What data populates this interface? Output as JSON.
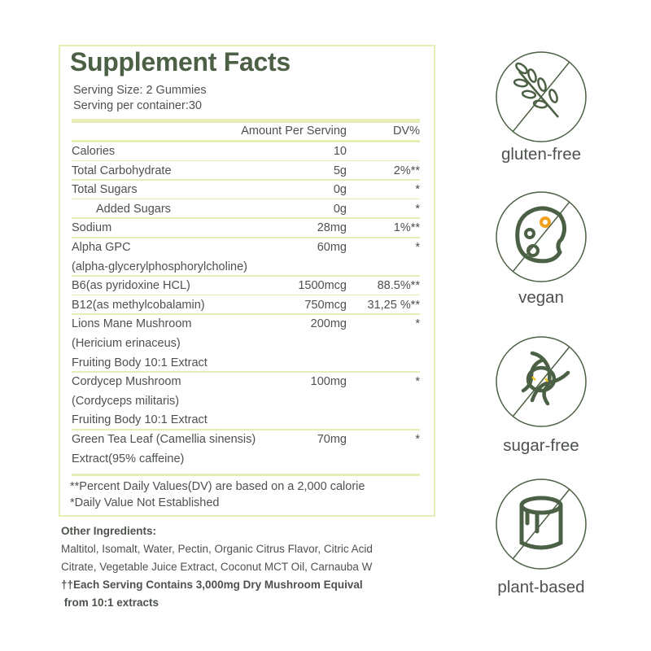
{
  "panel": {
    "title": "Supplement Facts",
    "serving_size": "Serving Size: 2 Gummies",
    "servings_per_container": "Serving per container:30",
    "header": {
      "amount": "Amount Per Serving",
      "dv": "DV%"
    },
    "rows": [
      {
        "label": "Calories",
        "amount": "10",
        "dv": ""
      },
      {
        "label": "Total Carbohydrate",
        "amount": "5g",
        "dv": "2%**"
      },
      {
        "label": "Total Sugars",
        "amount": "0g",
        "dv": "*"
      },
      {
        "label": "Added Sugars",
        "amount": "0g",
        "dv": "*"
      },
      {
        "label": "Sodium",
        "amount": "28mg",
        "dv": "1%**"
      },
      {
        "label": "Alpha GPC",
        "sub": [
          "(alpha-glycerylphosphorylcholine)"
        ],
        "amount": "60mg",
        "dv": "*"
      },
      {
        "label": "B6(as pyridoxine HCL)",
        "amount": "1500mcg",
        "dv": "88.5%**"
      },
      {
        "label": "B12(as methylcobalamin)",
        "amount": "750mcg",
        "dv": "31,25 %**"
      },
      {
        "label": "Lions Mane Mushroom",
        "sub": [
          "(Hericium erinaceus)",
          "Fruiting Body 10:1 Extract"
        ],
        "amount": "200mg",
        "dv": "*"
      },
      {
        "label": "Cordycep Mushroom",
        "sub": [
          "(Cordyceps militaris)",
          "Fruiting Body 10:1 Extract"
        ],
        "amount": "100mg",
        "dv": "*"
      },
      {
        "label": "Green Tea Leaf (Camellia sinensis)",
        "sub": [
          "Extract(95% caffeine)"
        ],
        "amount": "70mg",
        "dv": "*"
      }
    ],
    "footnote1": "**Percent Daily Values(DV) are based on a 2,000 calorie",
    "footnote2": "*Daily Value Not Established"
  },
  "other": {
    "heading": "Other Ingredients:",
    "line1": "Maltitol, Isomalt, Water, Pectin, Organic Citrus Flavor, Citric Acid",
    "line2": "Citrate, Vegetable Juice Extract, Coconut MCT Oil, Carnauba W",
    "note1": "††Each Serving Contains 3,000mg Dry Mushroom Equival",
    "note2": " from 10:1 extracts"
  },
  "badges": [
    {
      "label": "gluten-free",
      "icon": "wheat-crossed-icon"
    },
    {
      "label": "vegan",
      "icon": "palette-crossed-icon"
    },
    {
      "label": "sugar-free",
      "icon": "candy-crossed-icon"
    },
    {
      "label": "plant-based",
      "icon": "gelatin-crossed-icon"
    }
  ],
  "colors": {
    "brand": "#4b6044",
    "border": "#e8edb5",
    "accent": "#f2a11e"
  }
}
